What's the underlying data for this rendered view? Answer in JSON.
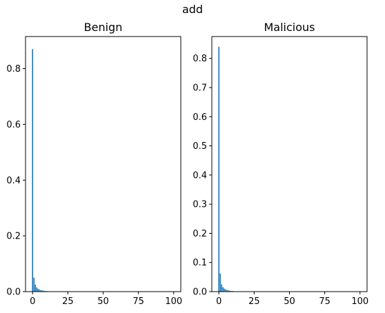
{
  "figure": {
    "suptitle": "add",
    "bar_color": "#1f77b4"
  },
  "chart_data": [
    {
      "type": "bar",
      "title": "Benign",
      "xlabel": "",
      "ylabel": "",
      "xlim": [
        -5,
        105
      ],
      "ylim": [
        0,
        0.915
      ],
      "xticks": [
        0,
        25,
        50,
        75,
        100
      ],
      "yticks": [
        0.0,
        0.2,
        0.4,
        0.6,
        0.8
      ],
      "ytick_labels": [
        "0.0",
        "0.2",
        "0.4",
        "0.6",
        "0.8"
      ],
      "x": [
        0,
        1,
        2,
        3,
        4,
        5,
        6,
        7,
        8,
        9,
        10
      ],
      "values": [
        0.87,
        0.05,
        0.025,
        0.015,
        0.01,
        0.007,
        0.005,
        0.004,
        0.003,
        0.002,
        0.002
      ],
      "grid": false
    },
    {
      "type": "bar",
      "title": "Malicious",
      "xlabel": "",
      "ylabel": "",
      "xlim": [
        -5,
        105
      ],
      "ylim": [
        0,
        0.875
      ],
      "xticks": [
        0,
        25,
        50,
        75,
        100
      ],
      "yticks": [
        0.0,
        0.1,
        0.2,
        0.3,
        0.4,
        0.5,
        0.6,
        0.7,
        0.8
      ],
      "ytick_labels": [
        "0.0",
        "0.1",
        "0.2",
        "0.3",
        "0.4",
        "0.5",
        "0.6",
        "0.7",
        "0.8"
      ],
      "x": [
        0,
        1,
        2,
        3,
        4,
        5,
        6,
        7,
        8,
        9,
        10
      ],
      "values": [
        0.84,
        0.062,
        0.025,
        0.015,
        0.01,
        0.007,
        0.005,
        0.004,
        0.003,
        0.002,
        0.002
      ],
      "grid": false
    }
  ]
}
